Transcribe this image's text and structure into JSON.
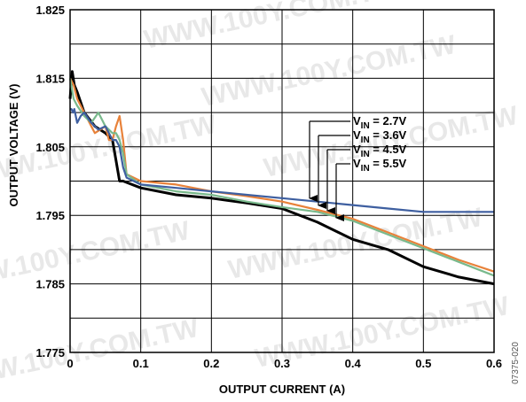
{
  "chart_data": {
    "type": "line",
    "title": "",
    "xlabel": "OUTPUT CURRENT (A)",
    "ylabel": "OUTPUT VOLTAGE (V)",
    "xlim": [
      0,
      0.6
    ],
    "ylim": [
      1.775,
      1.825
    ],
    "xticks": [
      "0",
      "0.1",
      "0.2",
      "0.3",
      "0.4",
      "0.5",
      "0.6"
    ],
    "yticks": [
      "1.775",
      "1.785",
      "1.795",
      "1.805",
      "1.815",
      "1.825"
    ],
    "grid": true,
    "legend_position": "center-right",
    "figure_code": "07375-020",
    "watermark": "WWW.100Y.COM.TW",
    "series": [
      {
        "label": "V_IN = 2.7V",
        "label_main": "V",
        "label_sub": "IN",
        "label_value": " = 2.7V",
        "color": "#000000",
        "x": [
          0,
          0.003,
          0.006,
          0.01,
          0.02,
          0.035,
          0.05,
          0.06,
          0.065,
          0.07,
          0.075,
          0.1,
          0.15,
          0.2,
          0.25,
          0.3,
          0.35,
          0.4,
          0.45,
          0.5,
          0.55,
          0.6
        ],
        "y": [
          1.812,
          1.816,
          1.814,
          1.813,
          1.81,
          1.808,
          1.807,
          1.806,
          1.803,
          1.8,
          1.8,
          1.799,
          1.798,
          1.7975,
          1.7968,
          1.796,
          1.794,
          1.7915,
          1.79,
          1.7875,
          1.786,
          1.785
        ]
      },
      {
        "label": "V_IN = 3.6V",
        "label_main": "V",
        "label_sub": "IN",
        "label_value": " = 3.6V",
        "color": "#e8823a",
        "x": [
          0,
          0.005,
          0.01,
          0.02,
          0.035,
          0.05,
          0.055,
          0.06,
          0.065,
          0.07,
          0.075,
          0.08,
          0.1,
          0.15,
          0.2,
          0.25,
          0.3,
          0.35,
          0.4,
          0.45,
          0.5,
          0.55,
          0.6
        ],
        "y": [
          1.815,
          1.814,
          1.812,
          1.81,
          1.807,
          1.808,
          1.806,
          1.806,
          1.808,
          1.8095,
          1.806,
          1.801,
          1.8,
          1.7995,
          1.7985,
          1.7978,
          1.797,
          1.7958,
          1.7945,
          1.7925,
          1.7905,
          1.7885,
          1.7868
        ]
      },
      {
        "label": "V_IN = 4.5V",
        "label_main": "V",
        "label_sub": "IN",
        "label_value": " = 4.5V",
        "color": "#79b98c",
        "x": [
          0,
          0.005,
          0.01,
          0.02,
          0.03,
          0.04,
          0.05,
          0.055,
          0.06,
          0.065,
          0.07,
          0.075,
          0.08,
          0.1,
          0.15,
          0.2,
          0.25,
          0.3,
          0.35,
          0.4,
          0.45,
          0.5,
          0.55,
          0.6
        ],
        "y": [
          1.815,
          1.812,
          1.811,
          1.8095,
          1.8085,
          1.81,
          1.808,
          1.8075,
          1.807,
          1.807,
          1.806,
          1.804,
          1.801,
          1.7995,
          1.7985,
          1.798,
          1.797,
          1.7962,
          1.7955,
          1.7942,
          1.7922,
          1.7902,
          1.7882,
          1.7862
        ]
      },
      {
        "label": "V_IN = 5.5V",
        "label_main": "V",
        "label_sub": "IN",
        "label_value": " = 5.5V",
        "color": "#3e5fa0",
        "x": [
          0,
          0.002,
          0.004,
          0.006,
          0.008,
          0.01,
          0.015,
          0.02,
          0.03,
          0.04,
          0.05,
          0.055,
          0.06,
          0.065,
          0.07,
          0.075,
          0.08,
          0.1,
          0.15,
          0.2,
          0.25,
          0.3,
          0.35,
          0.4,
          0.45,
          0.5,
          0.55,
          0.6
        ],
        "y": [
          1.8105,
          1.8105,
          1.81,
          1.8105,
          1.8095,
          1.8085,
          1.8095,
          1.81,
          1.8085,
          1.8075,
          1.808,
          1.807,
          1.806,
          1.806,
          1.805,
          1.802,
          1.8005,
          1.7995,
          1.799,
          1.7985,
          1.798,
          1.7975,
          1.797,
          1.7965,
          1.796,
          1.7955,
          1.7955,
          1.7955
        ]
      }
    ]
  }
}
